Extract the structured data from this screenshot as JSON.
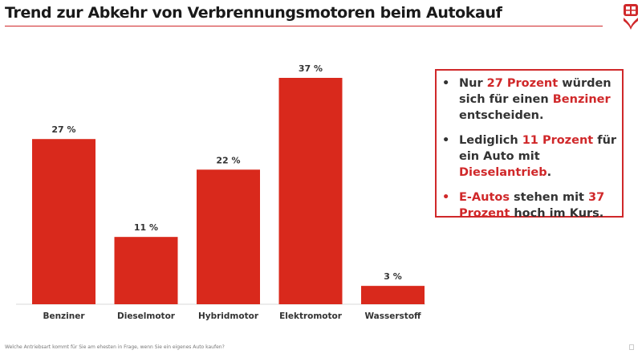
{
  "header": {
    "title": "Trend zur Abkehr von Verbrennungsmotoren beim Autokauf"
  },
  "colors": {
    "accent": "#d0282a",
    "bar": "#d9291c",
    "text": "#333333"
  },
  "chart_data": {
    "type": "bar",
    "title": "",
    "xlabel": "",
    "ylabel": "",
    "categories": [
      "Benziner",
      "Dieselmotor",
      "Hybridmotor",
      "Elektromotor",
      "Wasserstoff"
    ],
    "values": [
      27,
      11,
      22,
      37,
      3
    ],
    "labels": [
      "27 %",
      "11 %",
      "22 %",
      "37 %",
      "3 %"
    ],
    "ylim": [
      0,
      37
    ],
    "grid": false
  },
  "callout": {
    "items": [
      {
        "bullet": "•",
        "parts": [
          {
            "t": "Nur ",
            "r": false
          },
          {
            "t": "27 Prozent",
            "r": true
          },
          {
            "t": " würden sich für einen ",
            "r": false
          },
          {
            "t": "Benziner",
            "r": true
          },
          {
            "t": " entscheiden.",
            "r": false
          }
        ]
      },
      {
        "bullet": "•",
        "parts": [
          {
            "t": "Lediglich ",
            "r": false
          },
          {
            "t": "11 Prozent",
            "r": true
          },
          {
            "t": " für ein Auto mit ",
            "r": false
          },
          {
            "t": "Dieselantrieb",
            "r": true
          },
          {
            "t": ".",
            "r": false
          }
        ]
      },
      {
        "bullet": "•",
        "bullet_red": true,
        "parts": [
          {
            "t": "E-Autos",
            "r": true
          },
          {
            "t": " stehen mit ",
            "r": false
          },
          {
            "t": "37 Prozent",
            "r": true
          },
          {
            "t": " hoch im Kurs.",
            "r": false
          }
        ]
      }
    ]
  },
  "footer": {
    "question": "Welche Antriebsart kommt für Sie am ehesten in Frage, wenn Sie ein eigenes Auto kaufen?"
  }
}
